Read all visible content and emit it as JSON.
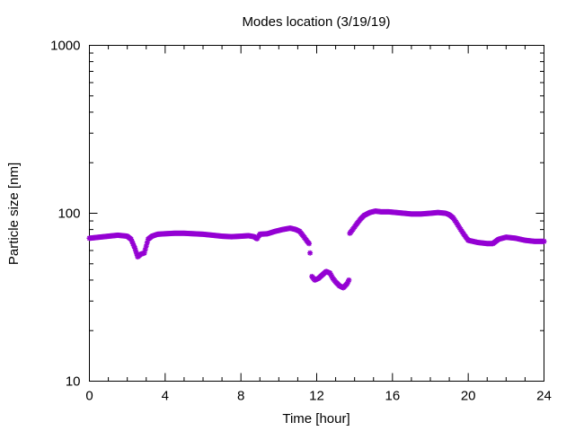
{
  "chart_data": {
    "type": "scatter",
    "title": "Modes location (3/19/19)",
    "xlabel": "Time [hour]",
    "ylabel": "Particle size [nm]",
    "xlim": [
      0,
      24
    ],
    "ylim": [
      10,
      1000
    ],
    "y_scale": "log",
    "grid": false,
    "legend": "none",
    "x_ticks": [
      "0",
      "4",
      "8",
      "12",
      "16",
      "20",
      "24"
    ],
    "y_ticks": [
      "10",
      "100",
      "1000"
    ],
    "marker_color": "#9400d3",
    "series": [
      {
        "x": [
          0.0,
          0.5,
          1.0,
          1.5,
          2.0,
          2.2,
          2.4,
          2.55,
          2.7,
          2.9,
          3.1,
          3.3,
          3.6,
          4.0,
          4.5,
          5.0,
          5.5,
          6.0,
          6.5,
          7.0,
          7.5,
          8.0,
          8.4,
          8.7,
          8.85,
          9.0,
          9.4,
          9.8,
          10.2,
          10.6,
          10.9,
          11.1,
          11.3,
          11.5,
          11.6,
          11.65,
          11.75,
          11.9,
          12.1,
          12.3,
          12.5,
          12.7,
          12.85,
          13.0,
          13.2,
          13.4,
          13.6,
          13.7,
          13.75,
          13.9,
          14.1,
          14.3,
          14.5,
          14.8,
          15.1,
          15.4,
          15.8,
          16.2,
          16.6,
          17.0,
          17.5,
          18.0,
          18.4,
          18.8,
          19.0,
          19.2,
          19.4,
          19.6,
          19.8,
          20.0,
          20.5,
          21.0,
          21.3,
          21.6,
          22.0,
          22.5,
          23.0,
          23.5,
          24.0
        ],
        "y": [
          71,
          72,
          73,
          74,
          73,
          70,
          62,
          55,
          57,
          58,
          70,
          73,
          75,
          75.5,
          76,
          76,
          75.5,
          75,
          74,
          73,
          72.5,
          73,
          73.5,
          72.5,
          70.5,
          75,
          75.5,
          78,
          80,
          81.5,
          80,
          78,
          73,
          68,
          66,
          58,
          42,
          40,
          41,
          43,
          45,
          44,
          41,
          39,
          37,
          36,
          38,
          40,
          76,
          80,
          86,
          92,
          97,
          101,
          103,
          102,
          102,
          101,
          100,
          99,
          99,
          100,
          101,
          100,
          98,
          94,
          87,
          80,
          74,
          69,
          67,
          66,
          66,
          70,
          72,
          71,
          69,
          68,
          68
        ]
      }
    ]
  }
}
